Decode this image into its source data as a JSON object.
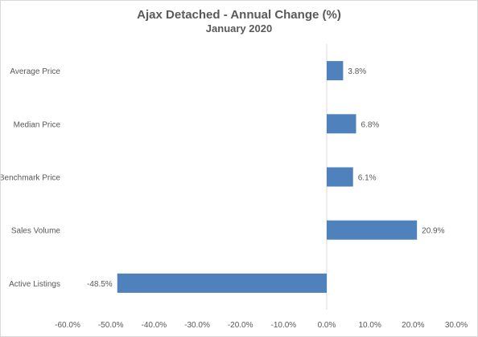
{
  "chart_data": {
    "type": "bar",
    "orientation": "horizontal",
    "title": "Ajax Detached - Annual Change (%)",
    "subtitle": "January 2020",
    "categories": [
      "Average Price",
      "Median Price",
      "Benchmark Price",
      "Sales Volume",
      "Active Listings"
    ],
    "values": [
      3.8,
      6.8,
      6.1,
      20.9,
      -48.5
    ],
    "data_labels": [
      "3.8%",
      "6.8%",
      "6.1%",
      "20.9%",
      "-48.5%"
    ],
    "xlim": [
      -60,
      30
    ],
    "x_ticks": [
      -60,
      -50,
      -40,
      -30,
      -20,
      -10,
      0,
      10,
      20,
      30
    ],
    "x_tick_labels": [
      "-60.0%",
      "-50.0%",
      "-40.0%",
      "-30.0%",
      "-20.0%",
      "-10.0%",
      "0.0%",
      "10.0%",
      "20.0%",
      "30.0%"
    ],
    "grid": false,
    "legend": "none",
    "colors": {
      "bar": "#4f81bd",
      "text": "#595959",
      "axis": "#d9d9d9"
    }
  }
}
